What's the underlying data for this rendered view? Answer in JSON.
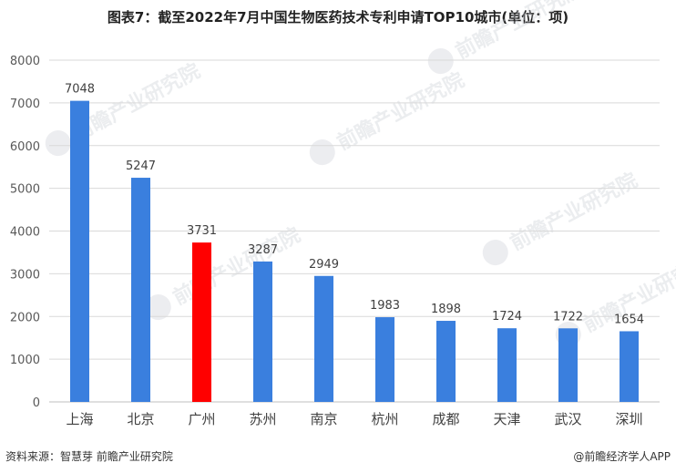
{
  "chart_data": {
    "type": "bar",
    "title": "图表7：截至2022年7月中国生物医药技术专利申请TOP10城市(单位：项)",
    "categories": [
      "上海",
      "北京",
      "广州",
      "苏州",
      "南京",
      "杭州",
      "成都",
      "天津",
      "武汉",
      "深圳"
    ],
    "values": [
      7048,
      5247,
      3731,
      3287,
      2949,
      1983,
      1898,
      1724,
      1722,
      1654
    ],
    "ylim": [
      0,
      8000
    ],
    "yticks": [
      0,
      1000,
      2000,
      3000,
      4000,
      5000,
      6000,
      7000,
      8000
    ],
    "grid": true,
    "colors": {
      "default": "#3a7fde",
      "highlight": "#ff0000"
    },
    "highlight_category": "广州"
  },
  "watermark": "前瞻产业研究院",
  "footer": {
    "source": "资料来源：智慧芽 前瞻产业研究院",
    "brand": "@前瞻经济学人APP"
  }
}
